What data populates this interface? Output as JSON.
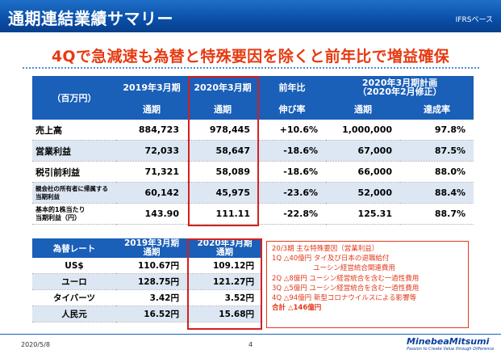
{
  "header": {
    "title": "通期連結業績サマリー",
    "standard": "IFRSベース"
  },
  "headline": "4Qで急減速も為替と特殊要因を除くと前年比で増益確保",
  "main_table": {
    "unit": "（百万円）",
    "col_fy2019": "2019年3月期",
    "col_fy2019_sub": "通期",
    "col_fy2020": "2020年3月期",
    "col_fy2020_sub": "通期",
    "col_yoy": "前年比",
    "col_yoy_sub": "伸び率",
    "col_plan": "2020年3月期計画",
    "col_plan_sub": "（2020年2月修正）",
    "col_plan_full": "通期",
    "col_plan_rate": "達成率",
    "rows": [
      {
        "label": "売上高",
        "fy2019": "884,723",
        "fy2020": "978,445",
        "yoy": "+10.6%",
        "plan": "1,000,000",
        "rate": "97.8%"
      },
      {
        "label": "営業利益",
        "fy2019": "72,033",
        "fy2020": "58,647",
        "yoy": "-18.6%",
        "plan": "67,000",
        "rate": "87.5%"
      },
      {
        "label": "税引前利益",
        "fy2019": "71,321",
        "fy2020": "58,089",
        "yoy": "-18.6%",
        "plan": "66,000",
        "rate": "88.0%"
      },
      {
        "label_line1": "親会社の所有者に帰属する",
        "label_line2": "当期利益",
        "fy2019": "60,142",
        "fy2020": "45,975",
        "yoy": "-23.6%",
        "plan": "52,000",
        "rate": "88.4%"
      },
      {
        "label_line1": "基本的1株当たり",
        "label_line2": "当期利益（円）",
        "fy2019": "143.90",
        "fy2020": "111.11",
        "yoy": "-22.8%",
        "plan": "125.31",
        "rate": "88.7%"
      }
    ]
  },
  "fx_table": {
    "label": "為替レート",
    "col_fy2019": "2019年3月期",
    "col_fy2019_sub": "通期",
    "col_fy2020": "2020年3月期",
    "col_fy2020_sub": "通期",
    "rows": [
      {
        "currency": "US$",
        "fy2019": "110.67円",
        "fy2020": "109.12円"
      },
      {
        "currency": "ユーロ",
        "fy2019": "128.75円",
        "fy2020": "121.27円"
      },
      {
        "currency": "タイバーツ",
        "fy2019": "3.42円",
        "fy2020": "3.52円"
      },
      {
        "currency": "人民元",
        "fy2019": "16.52円",
        "fy2020": "15.68円"
      }
    ]
  },
  "factors": {
    "title": "20/3期 主な特殊要因（営業利益）",
    "lines": [
      "1Q △40億円 タイ及び日本の退職給付",
      "　　　　　　ユーシン経営統合関連費用",
      "2Q △8億円 ユーシン経営統合を含む一過性費用",
      "3Q △5億円 ユーシン経営統合を含む一過性費用",
      "4Q △94億円 新型コロナウイルスによる影響等"
    ],
    "total": "合計 △146億円"
  },
  "footer": {
    "date": "2020/5/8",
    "page": "4",
    "logo": "MinebeaMitsumi",
    "tagline": "Passion to Create Value through Difference"
  },
  "colors": {
    "brand_blue": "#1a5fb8",
    "headline_red": "#e63a12",
    "row_shade": "#dce7f3",
    "highlight_red": "#d42020"
  }
}
